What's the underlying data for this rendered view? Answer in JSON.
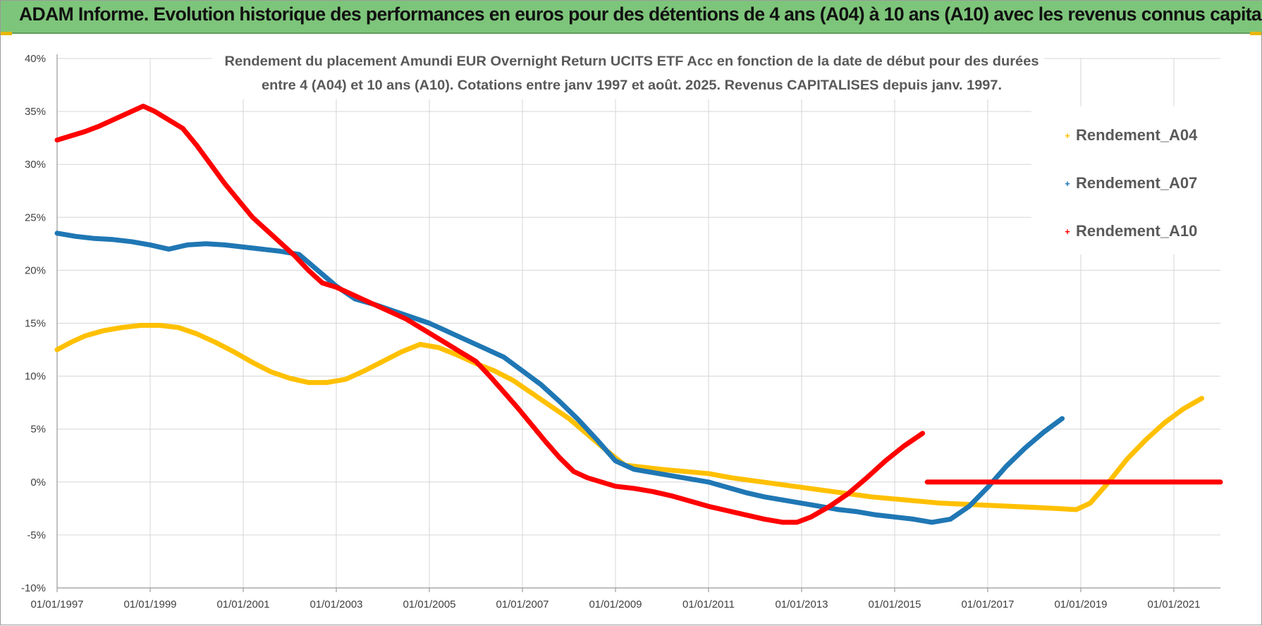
{
  "header": {
    "title": "ADAM Informe. Evolution historique des performances en euros pour des détentions de 4 ans (A04) à 10 ans (A10) avec les revenus connus capitalisés"
  },
  "chart_data": {
    "type": "scatter",
    "title_line1": "Rendement du placement Amundi EUR Overnight Return UCITS ETF Acc en fonction de la date de début pour des durées",
    "title_line2": "entre 4 (A04) et 10 ans (A10).  Cotations entre janv 1997 et août. 2025. Revenus CAPITALISES depuis janv. 1997.",
    "xlabel": "",
    "ylabel": "",
    "x_tick_labels": [
      "01/01/1997",
      "01/01/1999",
      "01/01/2001",
      "01/01/2003",
      "01/01/2005",
      "01/01/2007",
      "01/01/2009",
      "01/01/2011",
      "01/01/2013",
      "01/01/2015",
      "01/01/2017",
      "01/01/2019",
      "01/01/2021"
    ],
    "y_tick_labels": [
      "40%",
      "35%",
      "30%",
      "25%",
      "20%",
      "15%",
      "10%",
      "5%",
      "0%",
      "-5%",
      "-10%"
    ],
    "xlim": [
      1997.0,
      2022.0
    ],
    "ylim": [
      -10,
      40
    ],
    "grid": true,
    "legend_position": "top-right",
    "series": [
      {
        "name": "Rendement_A04",
        "color": "#ffc000",
        "x": [
          1997.0,
          1997.3,
          1997.6,
          1998.0,
          1998.4,
          1998.8,
          1999.2,
          1999.6,
          2000.0,
          2000.4,
          2000.8,
          2001.2,
          2001.6,
          2002.0,
          2002.4,
          2002.8,
          2003.2,
          2003.6,
          2004.0,
          2004.4,
          2004.8,
          2005.2,
          2005.6,
          2006.0,
          2006.4,
          2006.8,
          2007.2,
          2007.6,
          2008.0,
          2008.4,
          2008.8,
          2009.2,
          2009.6,
          2010.0,
          2010.5,
          2011.0,
          2011.5,
          2012.0,
          2012.5,
          2013.0,
          2013.5,
          2014.0,
          2014.5,
          2015.0,
          2015.5,
          2016.0,
          2016.5,
          2017.0,
          2017.5,
          2018.0,
          2018.5,
          2018.9,
          2019.2,
          2019.6,
          2020.0,
          2020.4,
          2020.8,
          2021.2,
          2021.6
        ],
        "y": [
          12.5,
          13.2,
          13.8,
          14.3,
          14.6,
          14.8,
          14.8,
          14.6,
          14.0,
          13.2,
          12.3,
          11.3,
          10.4,
          9.8,
          9.4,
          9.4,
          9.7,
          10.5,
          11.4,
          12.3,
          13.0,
          12.7,
          12.0,
          11.2,
          10.5,
          9.6,
          8.4,
          7.2,
          6.0,
          4.5,
          3.0,
          1.6,
          1.4,
          1.2,
          1.0,
          0.8,
          0.4,
          0.1,
          -0.2,
          -0.5,
          -0.8,
          -1.1,
          -1.4,
          -1.6,
          -1.8,
          -2.0,
          -2.1,
          -2.2,
          -2.3,
          -2.4,
          -2.5,
          -2.6,
          -2.0,
          0.0,
          2.2,
          4.0,
          5.6,
          6.9,
          7.9
        ]
      },
      {
        "name": "Rendement_A07",
        "color": "#1f77b4",
        "x": [
          1997.0,
          1997.4,
          1997.8,
          1998.2,
          1998.6,
          1999.0,
          1999.4,
          1999.8,
          2000.2,
          2000.6,
          2001.0,
          2001.4,
          2001.8,
          2002.2,
          2002.6,
          2003.0,
          2003.4,
          2003.8,
          2004.2,
          2004.6,
          2005.0,
          2005.4,
          2005.8,
          2006.2,
          2006.6,
          2007.0,
          2007.4,
          2007.8,
          2008.2,
          2008.6,
          2009.0,
          2009.4,
          2009.8,
          2010.2,
          2010.6,
          2011.0,
          2011.4,
          2011.8,
          2012.2,
          2012.6,
          2013.0,
          2013.4,
          2013.8,
          2014.2,
          2014.6,
          2015.0,
          2015.4,
          2015.8,
          2016.2,
          2016.6,
          2017.0,
          2017.4,
          2017.8,
          2018.2,
          2018.6
        ],
        "y": [
          23.5,
          23.2,
          23.0,
          22.9,
          22.7,
          22.4,
          22.0,
          22.4,
          22.5,
          22.4,
          22.2,
          22.0,
          21.8,
          21.5,
          20.0,
          18.5,
          17.3,
          16.8,
          16.2,
          15.6,
          15.0,
          14.2,
          13.4,
          12.6,
          11.8,
          10.5,
          9.2,
          7.6,
          5.9,
          4.0,
          2.0,
          1.2,
          0.9,
          0.6,
          0.3,
          0.0,
          -0.5,
          -1.0,
          -1.4,
          -1.7,
          -2.0,
          -2.3,
          -2.6,
          -2.8,
          -3.1,
          -3.3,
          -3.5,
          -3.8,
          -3.5,
          -2.3,
          -0.5,
          1.5,
          3.2,
          4.7,
          6.0
        ]
      },
      {
        "name": "Rendement_A10",
        "color": "#ff0000",
        "x": [
          1997.0,
          1997.3,
          1997.6,
          1997.9,
          1998.2,
          1998.5,
          1998.85,
          1999.1,
          1999.4,
          1999.7,
          2000.0,
          2000.3,
          2000.6,
          2000.9,
          2001.2,
          2001.5,
          2001.8,
          2002.1,
          2002.4,
          2002.7,
          2003.0,
          2003.3,
          2003.6,
          2003.9,
          2004.2,
          2004.5,
          2004.8,
          2005.1,
          2005.4,
          2005.7,
          2006.0,
          2006.3,
          2006.6,
          2006.9,
          2007.2,
          2007.5,
          2007.8,
          2008.1,
          2008.4,
          2008.7,
          2009.0,
          2009.4,
          2009.8,
          2010.2,
          2010.6,
          2011.0,
          2011.4,
          2011.8,
          2012.2,
          2012.6,
          2012.9,
          2013.2,
          2013.6,
          2014.0,
          2014.4,
          2014.8,
          2015.2,
          2015.6
        ],
        "y": [
          32.3,
          32.7,
          33.1,
          33.6,
          34.2,
          34.8,
          35.5,
          35.0,
          34.2,
          33.4,
          31.8,
          30.0,
          28.2,
          26.6,
          25.0,
          23.8,
          22.6,
          21.4,
          20.0,
          18.8,
          18.4,
          17.8,
          17.2,
          16.6,
          16.0,
          15.4,
          14.6,
          13.8,
          13.0,
          12.2,
          11.4,
          10.0,
          8.5,
          7.0,
          5.4,
          3.8,
          2.3,
          1.0,
          0.4,
          0.0,
          -0.4,
          -0.6,
          -0.9,
          -1.3,
          -1.8,
          -2.3,
          -2.7,
          -3.1,
          -3.5,
          -3.8,
          -3.8,
          -3.3,
          -2.3,
          -1.1,
          0.4,
          2.0,
          3.4,
          4.6
        ]
      },
      {
        "name": "",
        "color": "#ff0000",
        "x": [
          2015.7,
          2022.0
        ],
        "y": [
          0.0,
          0.0
        ]
      }
    ]
  }
}
